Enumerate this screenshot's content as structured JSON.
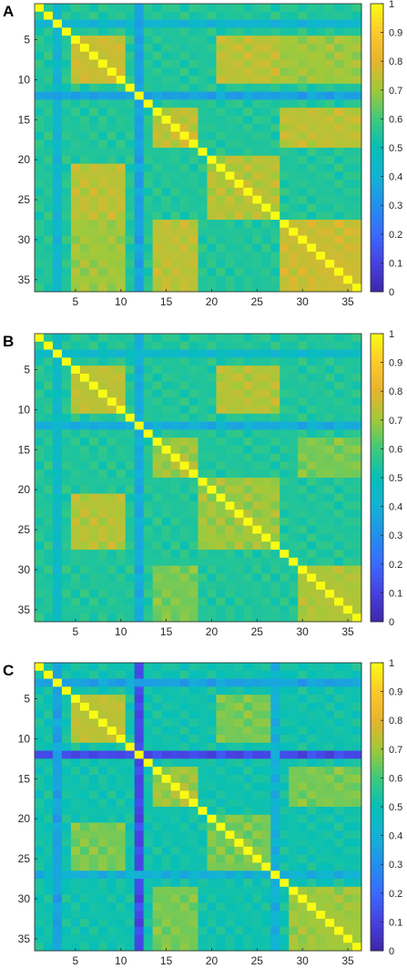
{
  "chart_data": [
    {
      "type": "heatmap",
      "panel_label": "A",
      "n": 36,
      "x_ticks": [
        5,
        10,
        15,
        20,
        25,
        30,
        35
      ],
      "y_ticks": [
        5,
        10,
        15,
        20,
        25,
        30,
        35
      ],
      "colorbar": {
        "min": 0,
        "max": 1,
        "ticks": [
          "0",
          "0.1",
          "0.2",
          "0.3",
          "0.4",
          "0.5",
          "0.6",
          "0.7",
          "0.8",
          "0.9",
          "1"
        ]
      },
      "diagonal": 1,
      "default_value": 0.55,
      "low_rows": [
        {
          "index": 2,
          "value": 0.42
        },
        {
          "index": 11,
          "value": 0.35
        }
      ],
      "clusters": [
        {
          "from": 4,
          "to": 9,
          "value": 0.76
        },
        {
          "from": 13,
          "to": 17,
          "value": 0.74
        },
        {
          "from": 19,
          "to": 26,
          "value": 0.73
        },
        {
          "from": 27,
          "to": 35,
          "value": 0.76
        }
      ],
      "links": [
        {
          "a": [
            4,
            9
          ],
          "b": [
            20,
            26
          ],
          "value": 0.74
        },
        {
          "a": [
            4,
            9
          ],
          "b": [
            27,
            35
          ],
          "value": 0.7
        },
        {
          "a": [
            13,
            17
          ],
          "b": [
            27,
            35
          ],
          "value": 0.74
        }
      ]
    },
    {
      "type": "heatmap",
      "panel_label": "B",
      "n": 36,
      "x_ticks": [
        5,
        10,
        15,
        20,
        25,
        30,
        35
      ],
      "y_ticks": [
        5,
        10,
        15,
        20,
        25,
        30,
        35
      ],
      "colorbar": {
        "min": 0,
        "max": 1,
        "ticks": [
          "0",
          "0.1",
          "0.2",
          "0.3",
          "0.4",
          "0.5",
          "0.6",
          "0.7",
          "0.8",
          "0.9",
          "1"
        ]
      },
      "diagonal": 1,
      "default_value": 0.55,
      "low_rows": [
        {
          "index": 11,
          "value": 0.38
        },
        {
          "index": 2,
          "value": 0.45
        }
      ],
      "clusters": [
        {
          "from": 4,
          "to": 9,
          "value": 0.74
        },
        {
          "from": 13,
          "to": 17,
          "value": 0.7
        },
        {
          "from": 18,
          "to": 26,
          "value": 0.7
        },
        {
          "from": 29,
          "to": 35,
          "value": 0.72
        }
      ],
      "links": [
        {
          "a": [
            4,
            9
          ],
          "b": [
            20,
            26
          ],
          "value": 0.73
        },
        {
          "a": [
            13,
            17
          ],
          "b": [
            29,
            35
          ],
          "value": 0.66
        }
      ]
    },
    {
      "type": "heatmap",
      "panel_label": "C",
      "n": 36,
      "x_ticks": [
        5,
        10,
        15,
        20,
        25,
        30,
        35
      ],
      "y_ticks": [
        5,
        10,
        15,
        20,
        25,
        30,
        35
      ],
      "colorbar": {
        "min": 0,
        "max": 1,
        "ticks": [
          "0",
          "0.1",
          "0.2",
          "0.3",
          "0.4",
          "0.5",
          "0.6",
          "0.7",
          "0.8",
          "0.9",
          "1"
        ]
      },
      "diagonal": 1,
      "default_value": 0.52,
      "low_rows": [
        {
          "index": 11,
          "value": 0.12
        },
        {
          "index": 2,
          "value": 0.35
        },
        {
          "index": 26,
          "value": 0.4
        }
      ],
      "clusters": [
        {
          "from": 4,
          "to": 9,
          "value": 0.74
        },
        {
          "from": 13,
          "to": 17,
          "value": 0.7
        },
        {
          "from": 19,
          "to": 25,
          "value": 0.66
        },
        {
          "from": 28,
          "to": 35,
          "value": 0.7
        }
      ],
      "links": [
        {
          "a": [
            4,
            9
          ],
          "b": [
            20,
            25
          ],
          "value": 0.66
        },
        {
          "a": [
            13,
            17
          ],
          "b": [
            28,
            35
          ],
          "value": 0.66
        }
      ]
    }
  ]
}
